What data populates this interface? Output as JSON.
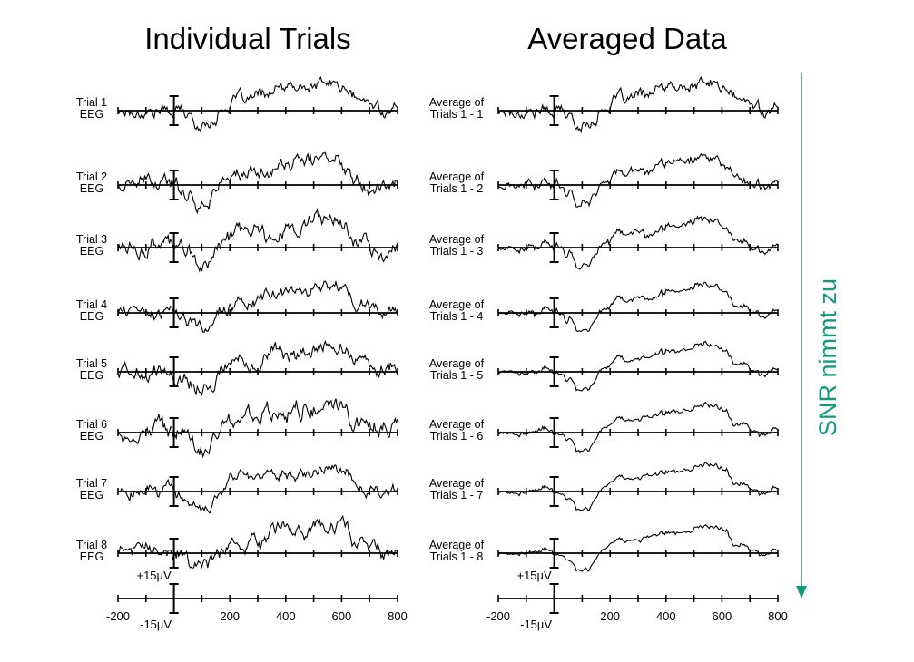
{
  "titles": {
    "left": "Individual Trials",
    "right": "Averaged Data"
  },
  "left_rows": [
    {
      "line1": "Trial 1",
      "line2": "EEG"
    },
    {
      "line1": "Trial 2",
      "line2": "EEG"
    },
    {
      "line1": "Trial 3",
      "line2": "EEG"
    },
    {
      "line1": "Trial 4",
      "line2": "EEG"
    },
    {
      "line1": "Trial 5",
      "line2": "EEG"
    },
    {
      "line1": "Trial 6",
      "line2": "EEG"
    },
    {
      "line1": "Trial 7",
      "line2": "EEG"
    },
    {
      "line1": "Trial 8",
      "line2": "EEG"
    }
  ],
  "right_rows": [
    {
      "line1": "Average of",
      "line2": "Trials 1 - 1"
    },
    {
      "line1": "Average of",
      "line2": "Trials 1 - 2"
    },
    {
      "line1": "Average of",
      "line2": "Trials 1 - 3"
    },
    {
      "line1": "Average of",
      "line2": "Trials 1 - 4"
    },
    {
      "line1": "Average of",
      "line2": "Trials 1 - 5"
    },
    {
      "line1": "Average of",
      "line2": "Trials 1 - 6"
    },
    {
      "line1": "Average of",
      "line2": "Trials 1 - 7"
    },
    {
      "line1": "Average of",
      "line2": "Trials 1 - 8"
    }
  ],
  "axis": {
    "x_range": [
      -200,
      800
    ],
    "tick_labels": [
      "-200",
      "200",
      "400",
      "600",
      "800"
    ],
    "scale_top": "+15µV",
    "scale_bottom": "-15µV"
  },
  "arrow_label": "SNR nimmt zu",
  "colors": {
    "arrow": "#129a80",
    "ink": "#000000"
  }
}
